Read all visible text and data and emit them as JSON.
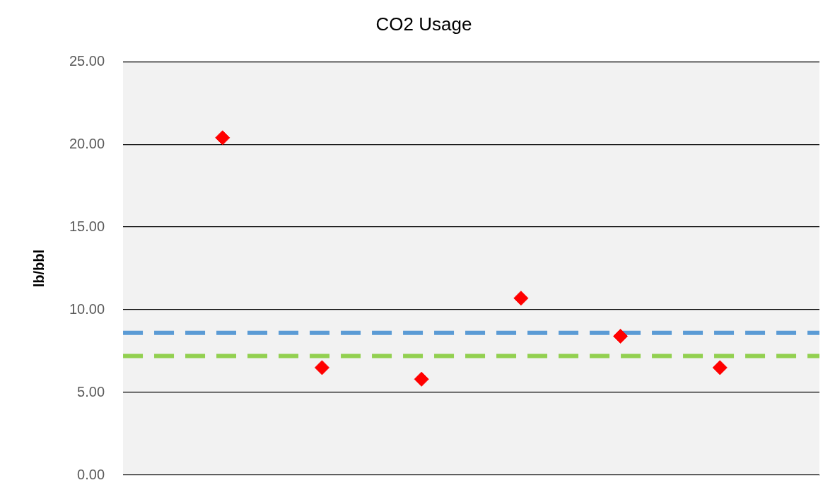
{
  "chart_data": {
    "type": "scatter",
    "title": "CO2 Usage",
    "ylabel": "lb/bbl",
    "categories": [
      null,
      null,
      null,
      null,
      null,
      null,
      null,
      null
    ],
    "series": [
      {
        "color": "#ff0000",
        "values": [
          null,
          20.4,
          6.5,
          5.8,
          10.7,
          8.4,
          6.5,
          null
        ]
      }
    ],
    "ylim": [
      0,
      25
    ],
    "yticks": [
      {
        "value": 0,
        "label": "0.00"
      },
      {
        "value": 5,
        "label": "5.00"
      },
      {
        "value": 10,
        "label": "10.00"
      },
      {
        "value": 15,
        "label": "15.00"
      },
      {
        "value": 20,
        "label": "20.00"
      },
      {
        "value": 25,
        "label": "25.00"
      }
    ],
    "ref_lines": [
      {
        "axis": "y",
        "value": 8.6,
        "color": "#5b9bd5",
        "line_style": "dashed"
      },
      {
        "axis": "y",
        "value": 7.2,
        "color": "#92d050",
        "line_style": "dashed"
      }
    ],
    "grid": "y",
    "legend": false,
    "marker": "diamond",
    "tick_labels": "y"
  }
}
